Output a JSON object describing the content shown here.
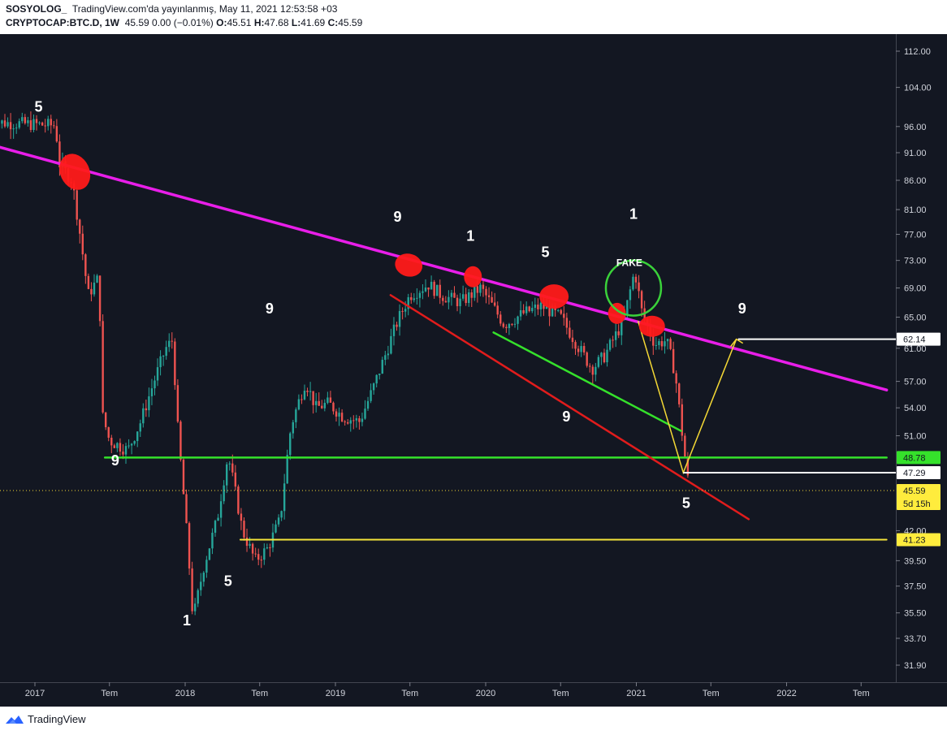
{
  "header": {
    "author": "SOSYOLOG_",
    "published": "TradingView.com'da yayınlanmış, May 11, 2021 12:53:58 +03",
    "symbol": "CRYPTOCAP:BTC.D, 1W",
    "quote": "45.59 0.00 (−0.01%)",
    "o_label": "O:",
    "o_value": "45.51",
    "h_label": "H:",
    "h_value": "47.68",
    "l_label": "L:",
    "l_value": "41.69",
    "c_label": "C:",
    "c_value": "45.59"
  },
  "footer": {
    "brand": "TradingView"
  },
  "colors": {
    "background": "#131722",
    "up": "#26a69a",
    "down": "#ef5350",
    "trend_magenta": "#e91ee9",
    "support_green": "#35e12b",
    "support_yellow": "#f5e43a",
    "red_line": "#e11c1c",
    "projection_yellow": "#f5d935",
    "marker_red": "#ff1a1a"
  },
  "chart_data": {
    "type": "candlestick",
    "symbol": "CRYPTOCAP:BTC.D",
    "interval": "1W",
    "ylim": [
      30.5,
      115
    ],
    "y_ticks": [
      112.0,
      104.0,
      96.0,
      91.0,
      86.0,
      81.0,
      77.0,
      73.0,
      69.0,
      65.0,
      61.0,
      57.0,
      54.0,
      51.0,
      42.0,
      39.5,
      37.5,
      35.5,
      33.7,
      31.9
    ],
    "x_ticks": [
      {
        "date": "2017-01-01",
        "label": "2017"
      },
      {
        "date": "2017-07-01",
        "label": "Tem"
      },
      {
        "date": "2018-01-01",
        "label": "2018"
      },
      {
        "date": "2018-07-01",
        "label": "Tem"
      },
      {
        "date": "2019-01-01",
        "label": "2019"
      },
      {
        "date": "2019-07-01",
        "label": "Tem"
      },
      {
        "date": "2020-01-01",
        "label": "2020"
      },
      {
        "date": "2020-07-01",
        "label": "Tem"
      },
      {
        "date": "2021-01-01",
        "label": "2021"
      },
      {
        "date": "2021-07-01",
        "label": "Tem"
      },
      {
        "date": "2022-01-01",
        "label": "2022"
      },
      {
        "date": "2022-07-01",
        "label": "Tem"
      }
    ],
    "price_path": [
      [
        "2016-09-15",
        96.9
      ],
      [
        "2017-02-20",
        96.2
      ],
      [
        "2017-03-01",
        89.0
      ],
      [
        "2017-04-01",
        86.0
      ],
      [
        "2017-05-10",
        68.0
      ],
      [
        "2017-06-05",
        70.5
      ],
      [
        "2017-06-15",
        53.0
      ],
      [
        "2017-07-01",
        50.5
      ],
      [
        "2017-08-15",
        49.5
      ],
      [
        "2017-09-15",
        52.5
      ],
      [
        "2017-11-15",
        61.0
      ],
      [
        "2017-12-01",
        62.0
      ],
      [
        "2017-12-15",
        51.0
      ],
      [
        "2018-01-20",
        35.0
      ],
      [
        "2018-02-15",
        39.0
      ],
      [
        "2018-03-20",
        43.0
      ],
      [
        "2018-04-15",
        49.0
      ],
      [
        "2018-05-20",
        42.0
      ],
      [
        "2018-06-20",
        39.5
      ],
      [
        "2018-07-20",
        40.5
      ],
      [
        "2018-08-20",
        43.0
      ],
      [
        "2018-09-15",
        52.0
      ],
      [
        "2018-10-20",
        57.0
      ],
      [
        "2018-11-15",
        54.0
      ],
      [
        "2018-12-15",
        54.5
      ],
      [
        "2019-01-20",
        53.0
      ],
      [
        "2019-03-01",
        52.5
      ],
      [
        "2019-04-01",
        56.0
      ],
      [
        "2019-05-01",
        60.0
      ],
      [
        "2019-06-01",
        64.5
      ],
      [
        "2019-07-01",
        68.0
      ],
      [
        "2019-08-15",
        69.5
      ],
      [
        "2019-09-15",
        68.0
      ],
      [
        "2019-11-01",
        67.0
      ],
      [
        "2019-12-20",
        69.0
      ],
      [
        "2020-02-15",
        64.0
      ],
      [
        "2020-04-01",
        65.5
      ],
      [
        "2020-05-15",
        66.5
      ],
      [
        "2020-07-01",
        65.0
      ],
      [
        "2020-08-15",
        61.0
      ],
      [
        "2020-09-15",
        58.5
      ],
      [
        "2020-10-15",
        60.0
      ],
      [
        "2020-12-01",
        64.5
      ],
      [
        "2020-12-28",
        71.5
      ],
      [
        "2021-01-15",
        65.5
      ],
      [
        "2021-02-15",
        61.5
      ],
      [
        "2021-03-15",
        62.0
      ],
      [
        "2021-04-05",
        58.0
      ],
      [
        "2021-04-20",
        52.0
      ],
      [
        "2021-05-03",
        47.5
      ],
      [
        "2021-05-10",
        45.59
      ]
    ],
    "price_lines": [
      {
        "value": 62.14,
        "label": "62.14",
        "kind": "white"
      },
      {
        "value": 48.78,
        "label": "48.78",
        "kind": "green"
      },
      {
        "value": 47.29,
        "label": "47.29",
        "kind": "white"
      },
      {
        "value": 45.59,
        "label": "45.59",
        "sublabel": "5d 15h",
        "kind": "yellow"
      },
      {
        "value": 41.23,
        "label": "41.23",
        "kind": "yellow"
      }
    ],
    "trendlines": [
      {
        "name": "magenta-resistance",
        "from": [
          "2016-09-15",
          92.5
        ],
        "to": [
          "2022-09-01",
          56.0
        ]
      },
      {
        "name": "green-support",
        "from": [
          "2017-06-20",
          48.78
        ],
        "to": [
          "2022-09-01",
          48.78
        ]
      },
      {
        "name": "yellow-support",
        "from": [
          "2018-05-15",
          41.23
        ],
        "to": [
          "2022-09-01",
          41.23
        ]
      },
      {
        "name": "red-channel",
        "from": [
          "2019-05-15",
          68.0
        ],
        "to": [
          "2021-10-01",
          43.0
        ]
      },
      {
        "name": "green-wedge",
        "from": [
          "2020-01-20",
          63.0
        ],
        "to": [
          "2021-04-20",
          51.5
        ]
      }
    ],
    "annotations": [
      {
        "text": "5",
        "date": "2017-01-10",
        "price": 99.0
      },
      {
        "text": "9",
        "date": "2019-06-01",
        "price": 79.0
      },
      {
        "text": "1",
        "date": "2019-11-25",
        "price": 76.0
      },
      {
        "text": "5",
        "date": "2020-05-25",
        "price": 73.5
      },
      {
        "text": "1",
        "date": "2020-12-25",
        "price": 79.5
      },
      {
        "text": "9",
        "date": "2018-07-25",
        "price": 65.5
      },
      {
        "text": "9",
        "date": "2021-09-15",
        "price": 65.5
      },
      {
        "text": "9",
        "date": "2020-07-15",
        "price": 52.5
      },
      {
        "text": "9",
        "date": "2017-07-15",
        "price": 48.0
      },
      {
        "text": "5",
        "date": "2021-05-02",
        "price": 44.0
      },
      {
        "text": "5",
        "date": "2018-04-15",
        "price": 37.5
      },
      {
        "text": "1",
        "date": "2018-01-05",
        "price": 34.6
      },
      {
        "text": "FAKE",
        "date": "2020-12-15",
        "price": 72.2
      }
    ]
  }
}
